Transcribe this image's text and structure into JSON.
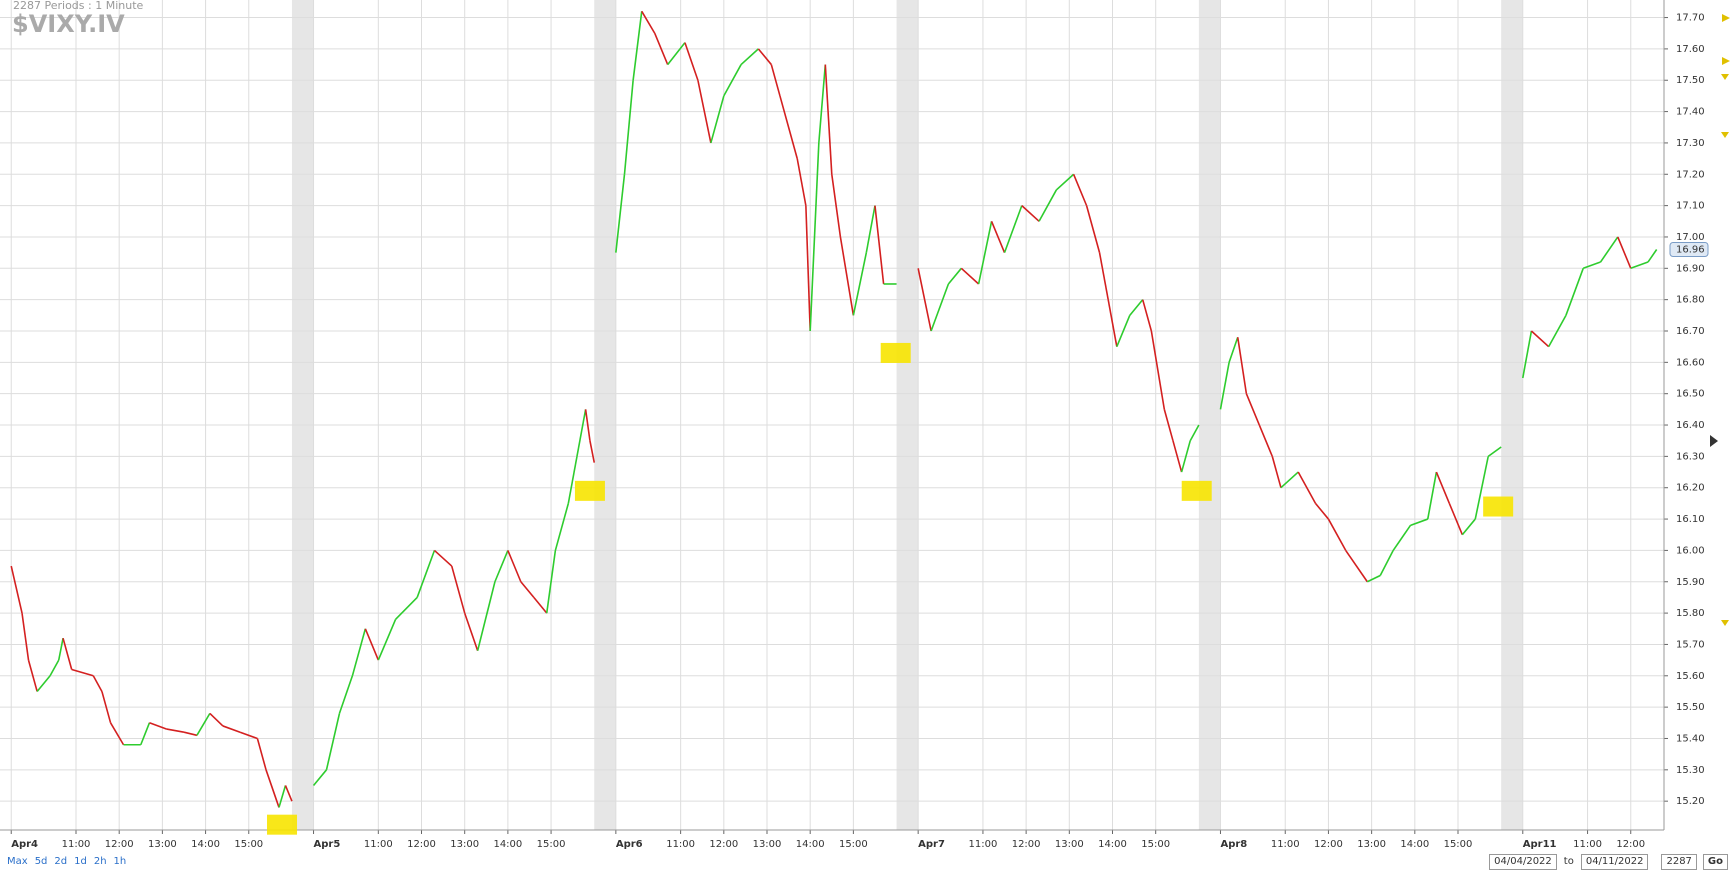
{
  "header": {
    "periods": "2287  Periods : 1 Minute",
    "symbol": "$VIXY.IV"
  },
  "controls": {
    "ranges": [
      "Max",
      "5d",
      "2d",
      "1d",
      "2h",
      "1h"
    ],
    "from": "04/04/2022",
    "to_label": "to",
    "to": "04/11/2022",
    "count": "2287",
    "go": "Go"
  },
  "chart_data": {
    "type": "line",
    "x": [
      0,
      0.25,
      0.4,
      0.6,
      0.9,
      1.1,
      1.2,
      1.4,
      1.9,
      2.1,
      2.3,
      2.6,
      3.0,
      3.2,
      3.6,
      4.0,
      4.3,
      4.6,
      4.9,
      5.3,
      5.7,
      5.9,
      6.2,
      6.35,
      6.5,
      6.75,
      7,
      7.3,
      7.6,
      7.9,
      8.2,
      8.5,
      8.9,
      9.4,
      9.8,
      10.2,
      10.5,
      10.8,
      11.2,
      11.5,
      11.8,
      12.1,
      12.4,
      12.6,
      12.9,
      13.1,
      13.3,
      13.4,
      13.5,
      13.75,
      14,
      14.2,
      14.4,
      14.6,
      14.9,
      15.2,
      15.6,
      15.9,
      16.2,
      16.5,
      16.9,
      17.3,
      17.6,
      17.8,
      18.2,
      18.4,
      18.5,
      18.7,
      18.85,
      19.0,
      19.2,
      19.5,
      19.8,
      20.0,
      20.2,
      20.5,
      20.75,
      21,
      21.3,
      21.7,
      22.0,
      22.4,
      22.7,
      23.0,
      23.4,
      23.8,
      24.2,
      24.6,
      24.9,
      25.2,
      25.4,
      25.6,
      25.9,
      26.2,
      26.4,
      26.7,
      26.9,
      27.1,
      27.3,
      27.5,
      27.75,
      28,
      28.2,
      28.4,
      28.6,
      28.9,
      29.2,
      29.4,
      29.8,
      30.2,
      30.5,
      30.9,
      31.4,
      31.7,
      32.0,
      32.4,
      32.8,
      33.0,
      33.3,
      33.6,
      33.9,
      34.2,
      34.5,
      34.75,
      35,
      35.2,
      35.6,
      36.0,
      36.4,
      36.8,
      37.2,
      37.5,
      37.9,
      38.1
    ],
    "values": [
      15.95,
      15.8,
      15.65,
      15.55,
      15.6,
      15.65,
      15.72,
      15.62,
      15.6,
      15.55,
      15.45,
      15.38,
      15.38,
      15.45,
      15.43,
      15.42,
      15.41,
      15.48,
      15.44,
      15.42,
      15.4,
      15.3,
      15.18,
      15.25,
      15.2,
      null,
      15.25,
      15.3,
      15.48,
      15.6,
      15.75,
      15.65,
      15.78,
      15.85,
      16.0,
      15.95,
      15.8,
      15.68,
      15.9,
      16.0,
      15.9,
      15.85,
      15.8,
      16.0,
      16.15,
      16.3,
      16.45,
      16.35,
      16.28,
      null,
      16.95,
      17.2,
      17.5,
      17.72,
      17.65,
      17.55,
      17.62,
      17.5,
      17.3,
      17.45,
      17.55,
      17.6,
      17.55,
      17.45,
      17.25,
      17.1,
      16.7,
      17.3,
      17.55,
      17.2,
      17.0,
      16.75,
      16.95,
      17.1,
      16.85,
      16.85,
      null,
      16.9,
      16.7,
      16.85,
      16.9,
      16.85,
      17.05,
      16.95,
      17.1,
      17.05,
      17.15,
      17.2,
      17.1,
      16.95,
      16.8,
      16.65,
      16.75,
      16.8,
      16.7,
      16.45,
      16.35,
      16.25,
      16.35,
      16.4,
      null,
      16.45,
      16.6,
      16.68,
      16.5,
      16.4,
      16.3,
      16.2,
      16.25,
      16.15,
      16.1,
      16.0,
      15.9,
      15.92,
      16.0,
      16.08,
      16.1,
      16.25,
      16.15,
      16.05,
      16.1,
      16.3,
      16.33,
      null,
      16.55,
      16.7,
      16.65,
      16.75,
      16.9,
      16.92,
      17.0,
      16.9,
      16.92,
      16.96
    ],
    "up_color": "#2ecc2e",
    "down_color": "#d42020",
    "last_price": 16.96,
    "xlim": [
      -0.26,
      38.27
    ],
    "ylim": [
      15.108,
      17.756
    ],
    "xticks": [
      {
        "value": 0,
        "label": "Apr4"
      },
      {
        "value": 1.5,
        "label": "11:00"
      },
      {
        "value": 2.5,
        "label": "12:00"
      },
      {
        "value": 3.5,
        "label": "13:00"
      },
      {
        "value": 4.5,
        "label": "14:00"
      },
      {
        "value": 5.5,
        "label": "15:00"
      },
      {
        "value": 7,
        "label": "Apr5"
      },
      {
        "value": 8.5,
        "label": "11:00"
      },
      {
        "value": 9.5,
        "label": "12:00"
      },
      {
        "value": 10.5,
        "label": "13:00"
      },
      {
        "value": 11.5,
        "label": "14:00"
      },
      {
        "value": 12.5,
        "label": "15:00"
      },
      {
        "value": 14,
        "label": "Apr6"
      },
      {
        "value": 15.5,
        "label": "11:00"
      },
      {
        "value": 16.5,
        "label": "12:00"
      },
      {
        "value": 17.5,
        "label": "13:00"
      },
      {
        "value": 18.5,
        "label": "14:00"
      },
      {
        "value": 19.5,
        "label": "15:00"
      },
      {
        "value": 21,
        "label": "Apr7"
      },
      {
        "value": 22.5,
        "label": "11:00"
      },
      {
        "value": 23.5,
        "label": "12:00"
      },
      {
        "value": 24.5,
        "label": "13:00"
      },
      {
        "value": 25.5,
        "label": "14:00"
      },
      {
        "value": 26.5,
        "label": "15:00"
      },
      {
        "value": 28,
        "label": "Apr8"
      },
      {
        "value": 29.5,
        "label": "11:00"
      },
      {
        "value": 30.5,
        "label": "12:00"
      },
      {
        "value": 31.5,
        "label": "13:00"
      },
      {
        "value": 32.5,
        "label": "14:00"
      },
      {
        "value": 33.5,
        "label": "15:00"
      },
      {
        "value": 35,
        "label": "Apr11"
      },
      {
        "value": 36.5,
        "label": "11:00"
      },
      {
        "value": 37.5,
        "label": "12:00"
      }
    ],
    "yticks": [
      {
        "value": 15.2,
        "label": "15.20"
      },
      {
        "value": 15.3,
        "label": "15.30"
      },
      {
        "value": 15.4,
        "label": "15.40"
      },
      {
        "value": 15.5,
        "label": "15.50"
      },
      {
        "value": 15.6,
        "label": "15.60"
      },
      {
        "value": 15.7,
        "label": "15.70"
      },
      {
        "value": 15.8,
        "label": "15.80"
      },
      {
        "value": 15.9,
        "label": "15.90"
      },
      {
        "value": 16.0,
        "label": "16.00"
      },
      {
        "value": 16.1,
        "label": "16.10"
      },
      {
        "value": 16.2,
        "label": "16.20"
      },
      {
        "value": 16.3,
        "label": "16.30"
      },
      {
        "value": 16.4,
        "label": "16.40"
      },
      {
        "value": 16.5,
        "label": "16.50"
      },
      {
        "value": 16.6,
        "label": "16.60"
      },
      {
        "value": 16.7,
        "label": "16.70"
      },
      {
        "value": 16.8,
        "label": "16.80"
      },
      {
        "value": 16.9,
        "label": "16.90"
      },
      {
        "value": 17.0,
        "label": "17.00"
      },
      {
        "value": 17.1,
        "label": "17.10"
      },
      {
        "value": 17.2,
        "label": "17.20"
      },
      {
        "value": 17.3,
        "label": "17.30"
      },
      {
        "value": 17.4,
        "label": "17.40"
      },
      {
        "value": 17.5,
        "label": "17.50"
      },
      {
        "value": 17.6,
        "label": "17.60"
      },
      {
        "value": 17.7,
        "label": "17.70"
      }
    ],
    "grid": true,
    "shaded_ranges": [
      [
        6.5,
        7
      ],
      [
        13.5,
        14
      ],
      [
        20.5,
        21
      ],
      [
        27.5,
        28
      ],
      [
        34.5,
        35
      ]
    ],
    "highlights": [
      {
        "x": 6.27,
        "y": 15.125
      },
      {
        "x": 13.4,
        "y": 16.19
      },
      {
        "x": 20.48,
        "y": 16.63
      },
      {
        "x": 27.45,
        "y": 16.19
      },
      {
        "x": 34.43,
        "y": 16.14
      }
    ],
    "highlight_color": "#f7e400"
  }
}
